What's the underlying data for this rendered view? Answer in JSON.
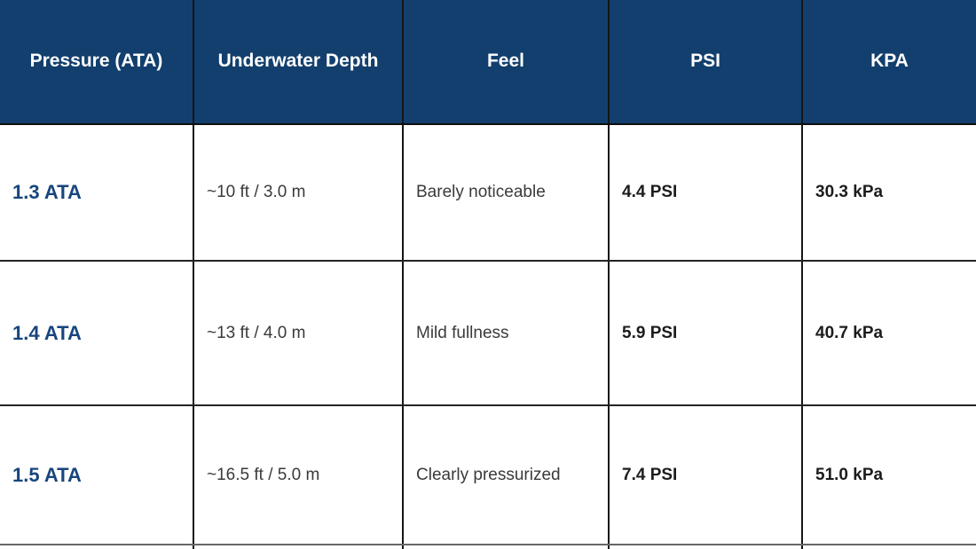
{
  "chart_data": {
    "type": "table",
    "title": "",
    "columns": [
      "Pressure (ATA)",
      "Underwater Depth",
      "Feel",
      "PSI",
      "KPA"
    ],
    "rows": [
      [
        "1.3 ATA",
        "~10 ft / 3.0 m",
        "Barely noticeable",
        "4.4 PSI",
        "30.3 kPa"
      ],
      [
        "1.4 ATA",
        "~13 ft / 4.0 m",
        "Mild fullness",
        "5.9 PSI",
        "40.7 kPa"
      ],
      [
        "1.5 ATA",
        "~16.5 ft / 5.0 m",
        "Clearly pressurized",
        "7.4 PSI",
        "51.0 kPa"
      ]
    ],
    "numeric": {
      "pressure_ata": [
        1.3,
        1.4,
        1.5
      ],
      "depth_ft": [
        10,
        13,
        16.5
      ],
      "depth_m": [
        3.0,
        4.0,
        5.0
      ],
      "psi": [
        4.4,
        5.9,
        7.4
      ],
      "kpa": [
        30.3,
        40.7,
        51.0
      ]
    }
  },
  "colors": {
    "header_bg": "#123F6D",
    "header_text": "#FFFFFF",
    "pressure_text": "#17457E",
    "body_text": "#3A3A3A",
    "bold_text": "#1C1C1C",
    "border": "#161616",
    "bottom_border": "#666666"
  }
}
